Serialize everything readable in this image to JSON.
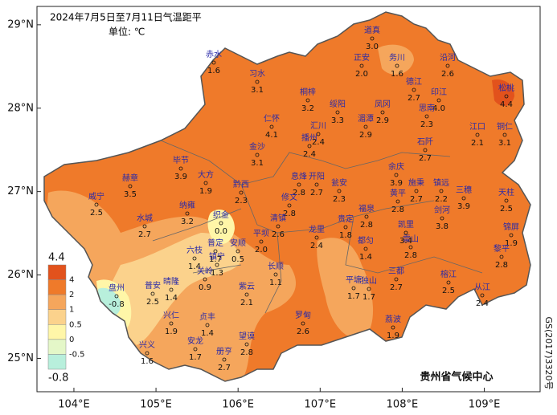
{
  "header": {
    "title": "2024年7月5日至7月11日气温距平",
    "unit": "单位: ℃"
  },
  "axes": {
    "lon_ticks": [
      {
        "value": 104,
        "label": "104°E"
      },
      {
        "value": 105,
        "label": "105°E"
      },
      {
        "value": 106,
        "label": "106°E"
      },
      {
        "value": 107,
        "label": "107°E"
      },
      {
        "value": 108,
        "label": "108°E"
      },
      {
        "value": 109,
        "label": "109°E"
      }
    ],
    "lat_ticks": [
      {
        "value": 29,
        "label": "29°N"
      },
      {
        "value": 28,
        "label": "28°N"
      },
      {
        "value": 27,
        "label": "27°N"
      },
      {
        "value": 26,
        "label": "26°N"
      },
      {
        "value": 25,
        "label": "25°N"
      }
    ],
    "lonlim": [
      103.55,
      109.68
    ],
    "latlim": [
      29.22,
      24.6
    ]
  },
  "legend": {
    "levels": [
      4.4,
      4,
      2,
      1,
      0.5,
      0,
      -0.5,
      -0.8
    ],
    "colors": [
      "#e2521c",
      "#ef7a2a",
      "#f5a65c",
      "#fbd28c",
      "#fff6a8",
      "#e4f7c8",
      "#b8efdc"
    ]
  },
  "stations": [
    {
      "name": "道真",
      "value": 3.0,
      "value_label": "3.0"
    },
    {
      "name": "正安",
      "value": 2.0,
      "value_label": "2.0"
    },
    {
      "name": "务川",
      "value": 1.6,
      "value_label": "1.6"
    },
    {
      "name": "沿河",
      "value": 2.6,
      "value_label": "2.6"
    },
    {
      "name": "赤水",
      "value": 1.6,
      "value_label": "1.6"
    },
    {
      "name": "习水",
      "value": 3.1,
      "value_label": "3.1"
    },
    {
      "name": "德江",
      "value": 2.7,
      "value_label": "2.7"
    },
    {
      "name": "松桃",
      "value": 4.4,
      "value_label": "4.4"
    },
    {
      "name": "桐梓",
      "value": 3.2,
      "value_label": "3.2"
    },
    {
      "name": "绥阳",
      "value": 3.3,
      "value_label": "3.3"
    },
    {
      "name": "凤冈",
      "value": 2.9,
      "value_label": "2.9"
    },
    {
      "name": "印江",
      "value": 4.0,
      "value_label": "4.0"
    },
    {
      "name": "思南",
      "value": 2.3,
      "value_label": "2.3"
    },
    {
      "name": "湄潭",
      "value": 2.9,
      "value_label": "2.9"
    },
    {
      "name": "仁怀",
      "value": 4.1,
      "value_label": "4.1"
    },
    {
      "name": "汇川",
      "value": 2.4,
      "value_label": "2.4"
    },
    {
      "name": "江口",
      "value": 2.1,
      "value_label": "2.1"
    },
    {
      "name": "铜仁",
      "value": 3.1,
      "value_label": "3.1"
    },
    {
      "name": "播州",
      "value": 2.4,
      "value_label": "2.4"
    },
    {
      "name": "石阡",
      "value": 2.7,
      "value_label": "2.7"
    },
    {
      "name": "金沙",
      "value": 3.1,
      "value_label": "3.1"
    },
    {
      "name": "毕节",
      "value": 3.9,
      "value_label": "3.9"
    },
    {
      "name": "大方",
      "value": 1.9,
      "value_label": "1.9"
    },
    {
      "name": "余庆",
      "value": 3.9,
      "value_label": "3.9"
    },
    {
      "name": "赫章",
      "value": 3.5,
      "value_label": "3.5"
    },
    {
      "name": "黔西",
      "value": 2.3,
      "value_label": "2.3"
    },
    {
      "name": "息烽",
      "value": 2.8,
      "value_label": "2.8"
    },
    {
      "name": "开阳",
      "value": 2.7,
      "value_label": "2.7"
    },
    {
      "name": "瓮安",
      "value": 2.3,
      "value_label": "2.3"
    },
    {
      "name": "施秉",
      "value": 2.7,
      "value_label": "2.7"
    },
    {
      "name": "镇远",
      "value": 2.2,
      "value_label": "2.2"
    },
    {
      "name": "三穗",
      "value": 3.9,
      "value_label": "3.9"
    },
    {
      "name": "天柱",
      "value": 2.5,
      "value_label": "2.5"
    },
    {
      "name": "威宁",
      "value": 2.5,
      "value_label": "2.5"
    },
    {
      "name": "纳雍",
      "value": 3.2,
      "value_label": "3.2"
    },
    {
      "name": "修文",
      "value": 2.8,
      "value_label": "2.8"
    },
    {
      "name": "黄平",
      "value": 2.8,
      "value_label": "2.8"
    },
    {
      "name": "剑河",
      "value": 3.8,
      "value_label": "3.8"
    },
    {
      "name": "福泉",
      "value": 2.8,
      "value_label": "2.8"
    },
    {
      "name": "织金",
      "value": 0.0,
      "value_label": "0.0"
    },
    {
      "name": "水城",
      "value": 2.7,
      "value_label": "2.7"
    },
    {
      "name": "清镇",
      "value": 2.6,
      "value_label": "2.6"
    },
    {
      "name": "贵定",
      "value": 1.8,
      "value_label": "1.8"
    },
    {
      "name": "凯里",
      "value": 3.4,
      "value_label": "3.4"
    },
    {
      "name": "锦屏",
      "value": 1.9,
      "value_label": "1.9"
    },
    {
      "name": "雷山",
      "value": 2.8,
      "value_label": "2.8"
    },
    {
      "name": "都匀",
      "value": 1.4,
      "value_label": "1.4"
    },
    {
      "name": "平坝",
      "value": 2.0,
      "value_label": "2.0"
    },
    {
      "name": "龙里",
      "value": 2.4,
      "value_label": "2.4"
    },
    {
      "name": "六枝",
      "value": 1.4,
      "value_label": "1.4"
    },
    {
      "name": "普定",
      "value": 1.7,
      "value_label": "1.7"
    },
    {
      "name": "安顺",
      "value": 0.5,
      "value_label": "0.5"
    },
    {
      "name": "镇宁",
      "value": 1.3,
      "value_label": "1.3"
    },
    {
      "name": "长顺",
      "value": 1.1,
      "value_label": "1.1"
    },
    {
      "name": "黎平",
      "value": 2.8,
      "value_label": "2.8"
    },
    {
      "name": "关岭",
      "value": 0.9,
      "value_label": "0.9"
    },
    {
      "name": "三都",
      "value": 2.7,
      "value_label": "2.7"
    },
    {
      "name": "榕江",
      "value": 2.5,
      "value_label": "2.5"
    },
    {
      "name": "盘州",
      "value": -0.8,
      "value_label": "-0.8"
    },
    {
      "name": "普安",
      "value": 2.5,
      "value_label": "2.5"
    },
    {
      "name": "晴隆",
      "value": 1.4,
      "value_label": "1.4"
    },
    {
      "name": "紫云",
      "value": 2.1,
      "value_label": "2.1"
    },
    {
      "name": "平塘",
      "value": 1.7,
      "value_label": "1.7"
    },
    {
      "name": "独山",
      "value": 1.7,
      "value_label": "1.7"
    },
    {
      "name": "从江",
      "value": 2.4,
      "value_label": "2.4"
    },
    {
      "name": "兴仁",
      "value": 1.9,
      "value_label": "1.9"
    },
    {
      "name": "贞丰",
      "value": 1.4,
      "value_label": "1.4"
    },
    {
      "name": "罗甸",
      "value": 2.6,
      "value_label": "2.6"
    },
    {
      "name": "荔波",
      "value": 1.9,
      "value_label": "1.9"
    },
    {
      "name": "兴义",
      "value": 1.6,
      "value_label": "1.6"
    },
    {
      "name": "安龙",
      "value": 1.7,
      "value_label": "1.7"
    },
    {
      "name": "望谟",
      "value": 2.8,
      "value_label": "2.8"
    },
    {
      "name": "册亨",
      "value": 2.7,
      "value_label": "2.7"
    }
  ],
  "footer": {
    "credit": "贵州省气候中心",
    "approval": "GS(2017)3320号"
  }
}
